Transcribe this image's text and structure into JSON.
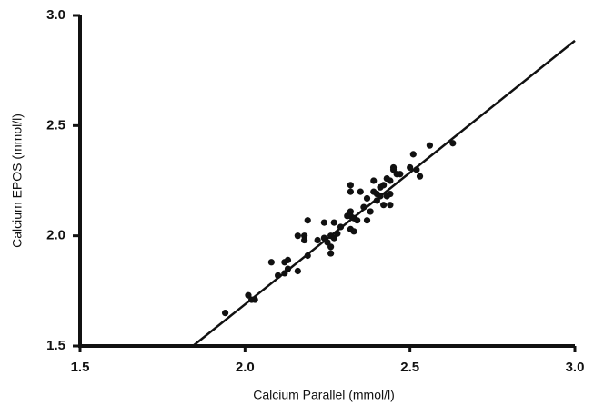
{
  "chart_data": {
    "type": "scatter",
    "x_label": "Calcium Parallel (mmol/l)",
    "y_label": "Calcium EPOS (mmol/l)",
    "xlim": [
      1.5,
      3.0
    ],
    "ylim": [
      1.5,
      3.0
    ],
    "xticks": [
      1.5,
      {
        "value": 2,
        "label": "2.0"
      },
      2.5,
      {
        "value": 3,
        "label": "3.0"
      }
    ],
    "yticks": [
      1.5,
      {
        "value": 2,
        "label": "2.0"
      },
      2.5,
      {
        "value": 3,
        "label": "3.0"
      }
    ],
    "color": "#111111",
    "x": [
      1.94,
      2.01,
      2.02,
      2.03,
      2.08,
      2.1,
      2.12,
      2.13,
      2.13,
      2.12,
      2.16,
      2.16,
      2.18,
      2.18,
      2.19,
      2.19,
      2.22,
      2.24,
      2.24,
      2.25,
      2.26,
      2.26,
      2.26,
      2.27,
      2.27,
      2.28,
      2.29,
      2.31,
      2.32,
      2.32,
      2.32,
      2.32,
      2.32,
      2.33,
      2.33,
      2.34,
      2.35,
      2.36,
      2.37,
      2.37,
      2.38,
      2.39,
      2.39,
      2.4,
      2.4,
      2.41,
      2.41,
      2.42,
      2.42,
      2.43,
      2.43,
      2.44,
      2.44,
      2.44,
      2.45,
      2.45,
      2.46,
      2.47,
      2.5,
      2.51,
      2.52,
      2.53,
      2.56,
      2.63
    ],
    "y": [
      1.65,
      1.73,
      1.71,
      1.71,
      1.88,
      1.82,
      1.88,
      1.85,
      1.89,
      1.83,
      1.84,
      2.0,
      2.0,
      1.98,
      2.07,
      1.91,
      1.98,
      1.99,
      2.06,
      1.97,
      2.0,
      1.95,
      1.92,
      2.06,
      1.99,
      2.01,
      2.04,
      2.09,
      2.23,
      2.2,
      2.11,
      2.09,
      2.03,
      2.02,
      2.08,
      2.07,
      2.2,
      2.13,
      2.07,
      2.17,
      2.11,
      2.25,
      2.2,
      2.16,
      2.19,
      2.22,
      2.18,
      2.14,
      2.23,
      2.18,
      2.26,
      2.14,
      2.19,
      2.25,
      2.31,
      2.3,
      2.28,
      2.28,
      2.31,
      2.37,
      2.3,
      2.27,
      2.41,
      2.42
    ],
    "fit": {
      "x": [
        1.842,
        3.0
      ],
      "y": [
        1.5,
        2.885
      ]
    }
  }
}
